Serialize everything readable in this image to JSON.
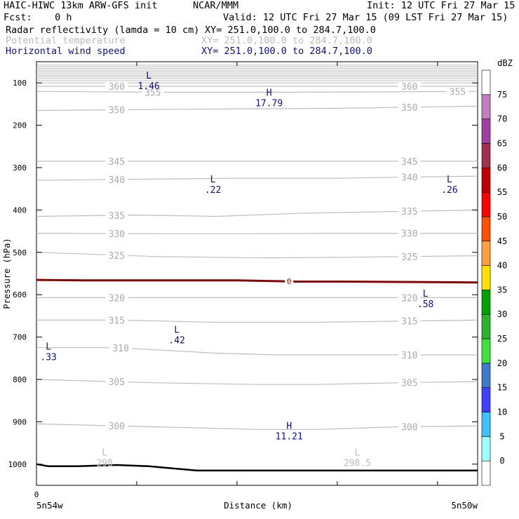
{
  "header": {
    "model": "HAIC-HIWC 13km ARW-GFS init",
    "org": "NCAR/MMM",
    "init": "Init: 12 UTC Fri 27 Mar 15",
    "fcst": "Fcst:    0 h",
    "valid": "Valid: 12 UTC Fri 27 Mar 15 (09 LST Fri 27 Mar 15)"
  },
  "fields": [
    {
      "name": "Radar reflectivity (lamda = 10 cm)",
      "xy": "XY= 251.0,100.0 to 284.7,100.0",
      "color": "#000000"
    },
    {
      "name": "Potential temperature",
      "xy": "XY= 251.0,100.0 to 284.7,100.0",
      "color": "#bbbbbb"
    },
    {
      "name": "Horizontal wind speed",
      "xy": "XY= 251.0,100.0 to 284.7,100.0",
      "color": "#101070"
    }
  ],
  "chart_data": {
    "type": "contour-cross-section",
    "xlabel": "Distance (km)",
    "ylabel": "Pressure (hPa)",
    "x_range": [
      0,
      110
    ],
    "ylim": [
      1050,
      50
    ],
    "x_start_tick": "0",
    "x_ticks_data": [
      0,
      25,
      50,
      75,
      100
    ],
    "y_ticks": [
      100,
      200,
      300,
      400,
      500,
      600,
      700,
      800,
      900,
      1000
    ],
    "x_left_label": "5n54w",
    "x_right_label": "5n50w",
    "theta_contours": [
      {
        "level": 300,
        "points": [
          [
            0,
            905
          ],
          [
            30,
            912
          ],
          [
            55,
            918
          ],
          [
            70,
            918
          ],
          [
            90,
            912
          ],
          [
            110,
            910
          ]
        ],
        "labels": [
          {
            "x": 20,
            "text": "300"
          },
          {
            "x": 93,
            "text": "300"
          }
        ]
      },
      {
        "level": 305,
        "points": [
          [
            0,
            800
          ],
          [
            30,
            808
          ],
          [
            55,
            812
          ],
          [
            70,
            812
          ],
          [
            90,
            808
          ],
          [
            110,
            805
          ]
        ],
        "labels": [
          {
            "x": 20,
            "text": "305"
          },
          {
            "x": 93,
            "text": "305"
          }
        ]
      },
      {
        "level": 310,
        "points": [
          [
            0,
            725
          ],
          [
            20,
            725
          ],
          [
            45,
            738
          ],
          [
            60,
            742
          ],
          [
            80,
            742
          ],
          [
            110,
            742
          ]
        ],
        "labels": [
          {
            "x": 21,
            "text": "310"
          },
          {
            "x": 93,
            "text": "310"
          }
        ]
      },
      {
        "level": 315,
        "points": [
          [
            0,
            660
          ],
          [
            20,
            660
          ],
          [
            45,
            665
          ],
          [
            70,
            665
          ],
          [
            110,
            660
          ]
        ],
        "labels": [
          {
            "x": 20,
            "text": "315"
          },
          {
            "x": 93,
            "text": "315"
          }
        ]
      },
      {
        "level": 320,
        "points": [
          [
            0,
            607
          ],
          [
            30,
            607
          ],
          [
            60,
            607
          ],
          [
            110,
            607
          ]
        ],
        "labels": [
          {
            "x": 20,
            "text": "320"
          },
          {
            "x": 93,
            "text": "320"
          }
        ]
      },
      {
        "level": 325,
        "points": [
          [
            0,
            500
          ],
          [
            30,
            510
          ],
          [
            55,
            513
          ],
          [
            75,
            512
          ],
          [
            110,
            508
          ]
        ],
        "labels": [
          {
            "x": 20,
            "text": "325"
          },
          {
            "x": 93,
            "text": "325"
          }
        ]
      },
      {
        "level": 330,
        "points": [
          [
            0,
            455
          ],
          [
            30,
            456
          ],
          [
            55,
            456
          ],
          [
            75,
            455
          ],
          [
            110,
            455
          ]
        ],
        "labels": [
          {
            "x": 20,
            "text": "330"
          },
          {
            "x": 93,
            "text": "330"
          }
        ]
      },
      {
        "level": 335,
        "points": [
          [
            0,
            415
          ],
          [
            25,
            412
          ],
          [
            45,
            415
          ],
          [
            65,
            408
          ],
          [
            110,
            400
          ]
        ],
        "labels": [
          {
            "x": 20,
            "text": "335"
          },
          {
            "x": 93,
            "text": "335"
          }
        ]
      },
      {
        "level": 340,
        "points": [
          [
            0,
            330
          ],
          [
            20,
            328
          ],
          [
            50,
            325
          ],
          [
            75,
            325
          ],
          [
            110,
            320
          ]
        ],
        "labels": [
          {
            "x": 20,
            "text": "340"
          },
          {
            "x": 93,
            "text": "340"
          }
        ]
      },
      {
        "level": 345,
        "points": [
          [
            0,
            285
          ],
          [
            40,
            285
          ],
          [
            75,
            285
          ],
          [
            110,
            285
          ]
        ],
        "labels": [
          {
            "x": 20,
            "text": "345"
          },
          {
            "x": 93,
            "text": "345"
          }
        ]
      },
      {
        "level": 350,
        "points": [
          [
            0,
            165
          ],
          [
            40,
            162
          ],
          [
            75,
            160
          ],
          [
            110,
            155
          ]
        ],
        "labels": [
          {
            "x": 20,
            "text": "350"
          },
          {
            "x": 93,
            "text": "350"
          }
        ]
      },
      {
        "level": 355,
        "points": [
          [
            0,
            120
          ],
          [
            30,
            122
          ],
          [
            65,
            122
          ],
          [
            110,
            120
          ]
        ],
        "labels": [
          {
            "x": 29,
            "text": "355"
          },
          {
            "x": 105,
            "text": "355"
          }
        ]
      },
      {
        "level": 360,
        "points": [
          [
            0,
            108
          ],
          [
            40,
            108
          ],
          [
            75,
            108
          ],
          [
            110,
            108
          ]
        ],
        "labels": [
          {
            "x": 20,
            "text": "360"
          },
          {
            "x": 93,
            "text": "360"
          }
        ]
      }
    ],
    "stratosphere_lines_p": [
      58,
      62,
      66,
      70,
      74,
      78,
      82,
      86,
      90,
      95,
      100
    ],
    "zero_dbz_contour": {
      "label": "0",
      "points": [
        [
          0,
          565
        ],
        [
          12,
          566
        ],
        [
          30,
          566
        ],
        [
          50,
          566
        ],
        [
          60,
          568
        ],
        [
          65,
          569
        ],
        [
          75,
          569
        ],
        [
          110,
          571
        ]
      ],
      "label_x": 63
    },
    "terrain": [
      [
        0,
        1000
      ],
      [
        3,
        1005
      ],
      [
        10,
        1005
      ],
      [
        20,
        1002
      ],
      [
        28,
        1005
      ],
      [
        40,
        1015
      ],
      [
        60,
        1015
      ],
      [
        90,
        1015
      ],
      [
        110,
        1015
      ]
    ],
    "wind_extrema": [
      {
        "type": "L",
        "value": "1.46",
        "x": 28,
        "p": 90
      },
      {
        "type": "H",
        "value": "17.79",
        "x": 58,
        "p": 130
      },
      {
        "type": "L",
        "value": ".22",
        "x": 44,
        "p": 335
      },
      {
        "type": "L",
        "value": ".26",
        "x": 103,
        "p": 335
      },
      {
        "type": "L",
        "value": ".58",
        "x": 97,
        "p": 605
      },
      {
        "type": "L",
        "value": ".42",
        "x": 35,
        "p": 690
      },
      {
        "type": "L",
        "value": ".33",
        "x": 3,
        "p": 730
      },
      {
        "type": "H",
        "value": "11.21",
        "x": 63,
        "p": 917
      }
    ],
    "theta_extrema": [
      {
        "type": "L",
        "value": "298",
        "x": 17,
        "p": 985
      },
      {
        "type": "L",
        "value": "298.5",
        "x": 80,
        "p": 985
      }
    ],
    "colorbar": {
      "unit": "dBZ",
      "levels": [
        "0",
        "5",
        "10",
        "15",
        "20",
        "25",
        "30",
        "35",
        "40",
        "45",
        "50",
        "55",
        "60",
        "65",
        "70",
        "75"
      ],
      "colors": [
        "#ffffff",
        "#a0ffff",
        "#40c0ff",
        "#4040ff",
        "#3c7cc8",
        "#40e040",
        "#30b030",
        "#00a000",
        "#ffe000",
        "#ffa040",
        "#ff5000",
        "#ff0000",
        "#c00000",
        "#a03050",
        "#a040a0",
        "#c080c0",
        "#ffffff"
      ]
    }
  }
}
